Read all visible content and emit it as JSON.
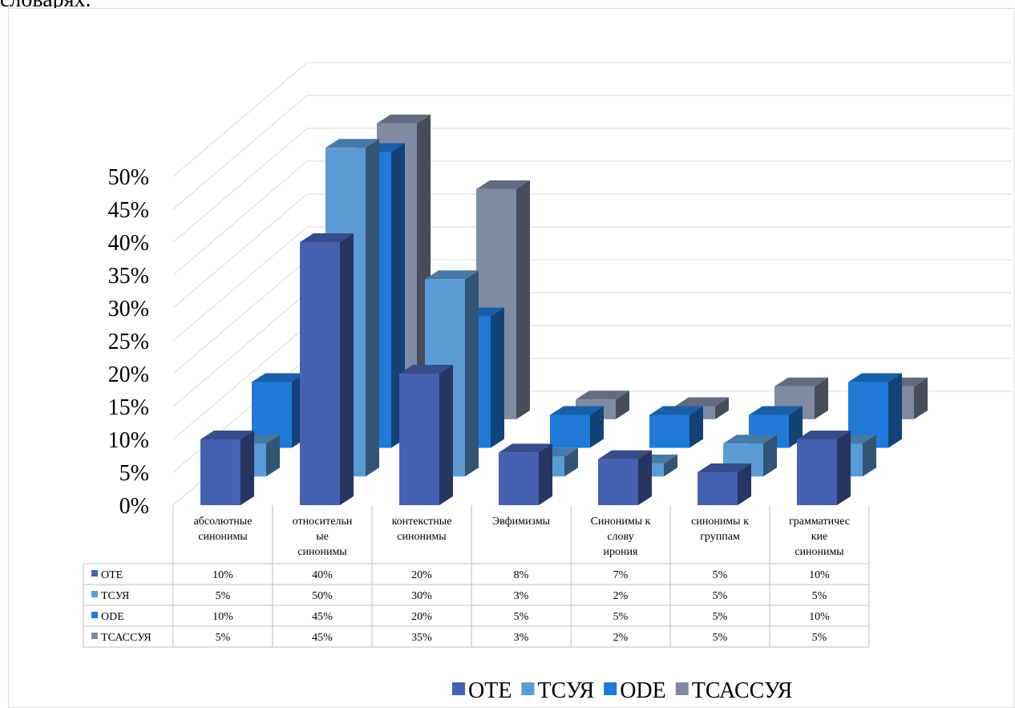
{
  "caption_fragment": "словарях.",
  "chart_data": {
    "type": "bar",
    "variant": "3d-clustered-columns-with-data-table",
    "categories": [
      [
        "абсолютные",
        "синонимы"
      ],
      [
        "относительн",
        "ые",
        "синонимы"
      ],
      [
        "контекстные",
        "синонимы"
      ],
      [
        "Эвфимизмы"
      ],
      [
        "Синонимы к",
        "слову",
        "ирония"
      ],
      [
        "синонимы к",
        "группам"
      ],
      [
        "грамматичес",
        "кие",
        "синонимы"
      ]
    ],
    "series": [
      {
        "name": "OTE",
        "color": "#4661b2",
        "values": [
          10,
          40,
          20,
          8,
          7,
          5,
          10
        ]
      },
      {
        "name": "ТСУЯ",
        "color": "#5b9bd5",
        "values": [
          5,
          50,
          30,
          3,
          2,
          5,
          5
        ]
      },
      {
        "name": "ODE",
        "color": "#1f7ad8",
        "values": [
          10,
          45,
          20,
          5,
          5,
          5,
          10
        ]
      },
      {
        "name": "ТСАССУЯ",
        "color": "#7f8ba3",
        "values": [
          5,
          45,
          35,
          3,
          2,
          5,
          5
        ]
      }
    ],
    "y_ticks": [
      "0%",
      "5%",
      "10%",
      "15%",
      "20%",
      "25%",
      "30%",
      "35%",
      "40%",
      "45%",
      "50%"
    ],
    "ylim": [
      0,
      50
    ],
    "unit": "%",
    "grid": true,
    "legend_position": "bottom"
  }
}
